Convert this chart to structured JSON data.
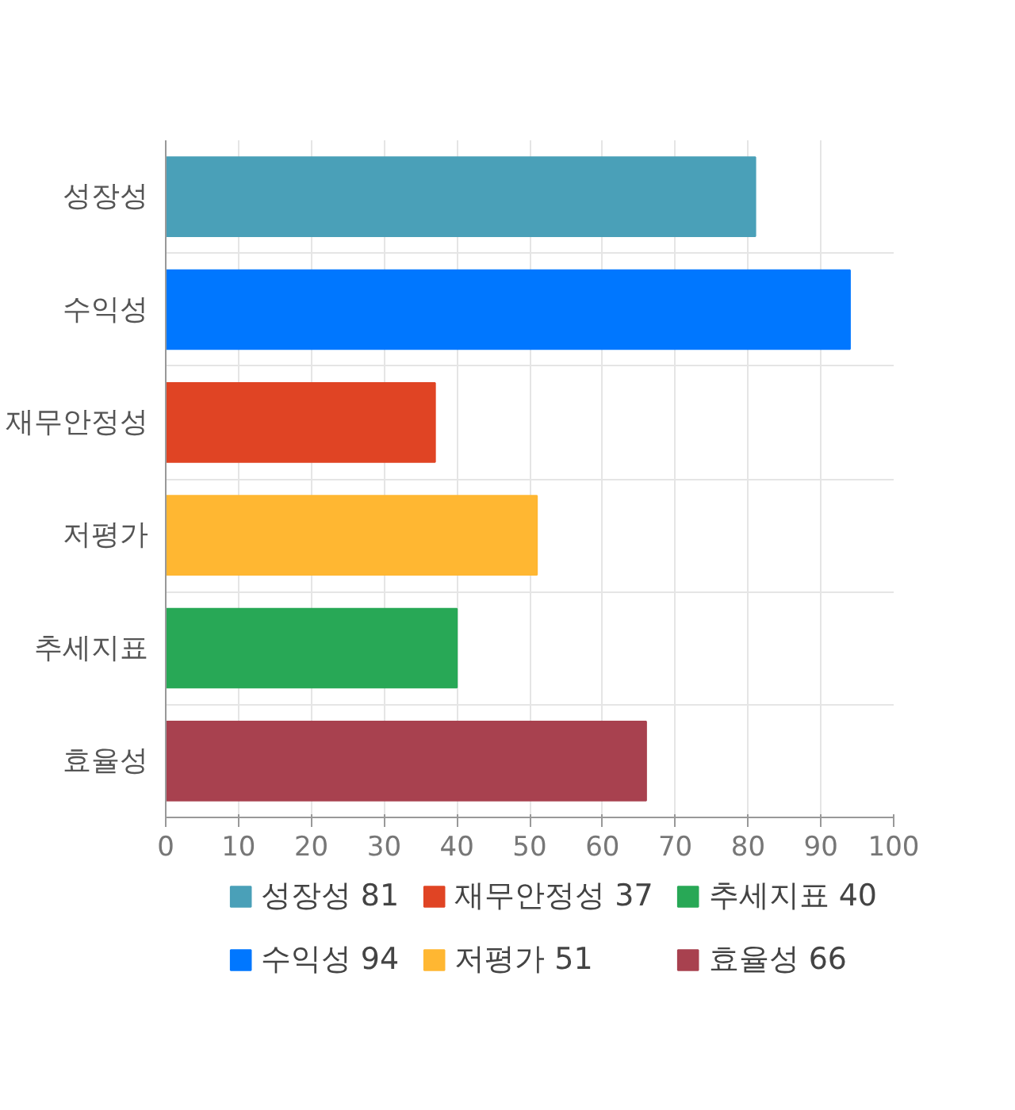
{
  "chart_data": {
    "type": "bar",
    "orientation": "horizontal",
    "categories": [
      "성장성",
      "수익성",
      "재무안정성",
      "저평가",
      "추세지표",
      "효율성"
    ],
    "series": [
      {
        "name": "성장성 81",
        "color": "#4aa0b8",
        "values": [
          81,
          null,
          null,
          null,
          null,
          null
        ]
      },
      {
        "name": "수익성 94",
        "color": "#0077ff",
        "values": [
          null,
          94,
          null,
          null,
          null,
          null
        ]
      },
      {
        "name": "재무안정성 37",
        "color": "#e04424",
        "values": [
          null,
          null,
          37,
          null,
          null,
          null
        ]
      },
      {
        "name": "저평가 51",
        "color": "#ffb732",
        "values": [
          null,
          null,
          null,
          51,
          null,
          null
        ]
      },
      {
        "name": "추세지표 40",
        "color": "#28a856",
        "values": [
          null,
          null,
          null,
          null,
          40,
          null
        ]
      },
      {
        "name": "효율성 66",
        "color": "#a8414f",
        "values": [
          null,
          null,
          null,
          null,
          null,
          66
        ]
      }
    ],
    "xlim": [
      0,
      100
    ],
    "xticks": [
      0,
      10,
      20,
      30,
      40,
      50,
      60,
      70,
      80,
      90,
      100
    ],
    "grid": true,
    "legend": "bottom"
  }
}
